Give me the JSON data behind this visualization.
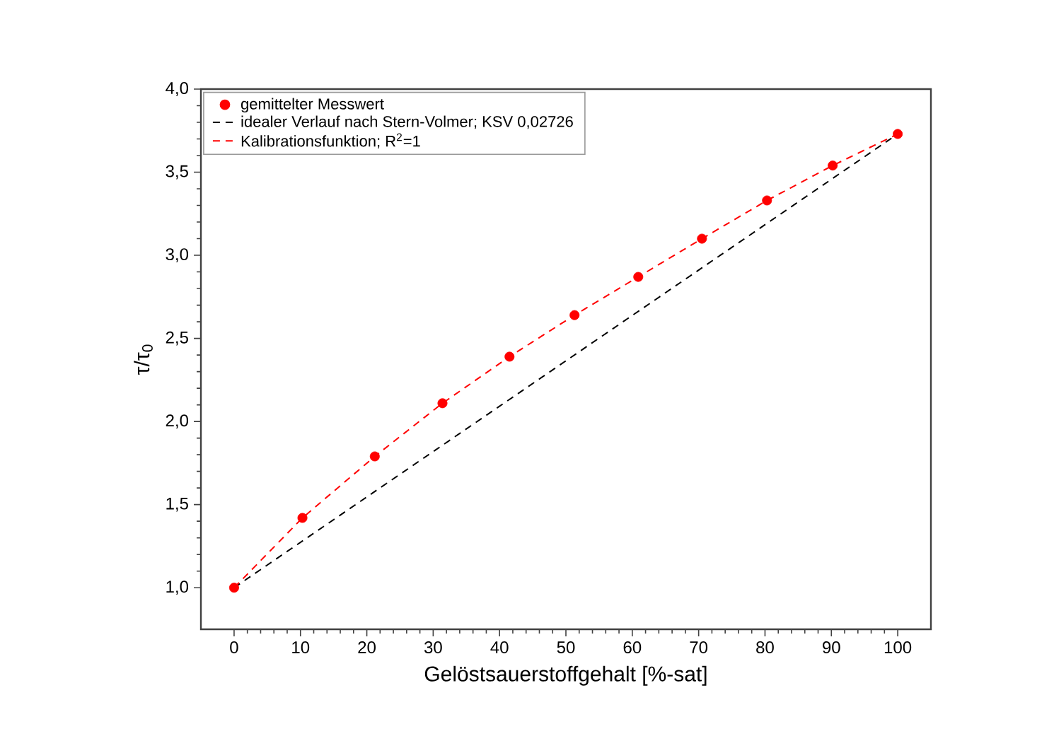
{
  "chart_data": {
    "type": "scatter",
    "xlabel": "Gelöstsauerstoffgehalt [%-sat]",
    "ylabel": "τ/τ$_{0}$",
    "xlim": [
      -5,
      105
    ],
    "ylim": [
      0.75,
      4.0
    ],
    "xticks": [
      0,
      10,
      20,
      30,
      40,
      50,
      60,
      70,
      80,
      90,
      100
    ],
    "yticks": [
      {
        "value": 1.0,
        "label": "1,0"
      },
      {
        "value": 1.5,
        "label": "1,5"
      },
      {
        "value": 2.0,
        "label": "2,0"
      },
      {
        "value": 2.5,
        "label": "2,5"
      },
      {
        "value": 3.0,
        "label": "3,0"
      },
      {
        "value": 3.5,
        "label": "3,5"
      },
      {
        "value": 4.0,
        "label": "4,0"
      }
    ],
    "legend": "top left",
    "series": [
      {
        "name": "gemittelter Messwert",
        "marker": "circle",
        "color": "#ff0000",
        "x": [
          0,
          10.3,
          21.2,
          31.4,
          41.5,
          51.3,
          60.9,
          70.5,
          80.3,
          90.2,
          100
        ],
        "values": [
          1.0,
          1.42,
          1.79,
          2.11,
          2.39,
          2.64,
          2.87,
          3.1,
          3.33,
          3.54,
          3.73
        ]
      },
      {
        "name": "idealer Verlauf nach Stern-Volmer; KSV 0,02726",
        "type": "line",
        "marker": "none",
        "line_style": "dashed",
        "color": "#000000",
        "x": [
          0,
          100
        ],
        "values": [
          1.0,
          3.73
        ]
      },
      {
        "name": "Kalibrationsfunktion; R$^{2}$=1",
        "type": "line",
        "marker": "none",
        "line_style": "dashed",
        "color": "#ff0000",
        "x": [
          0,
          10.3,
          21.2,
          31.4,
          41.5,
          51.3,
          60.9,
          70.5,
          80.3,
          90.2,
          100
        ],
        "values": [
          1.0,
          1.42,
          1.79,
          2.11,
          2.39,
          2.64,
          2.87,
          3.1,
          3.33,
          3.54,
          3.73
        ]
      }
    ]
  }
}
